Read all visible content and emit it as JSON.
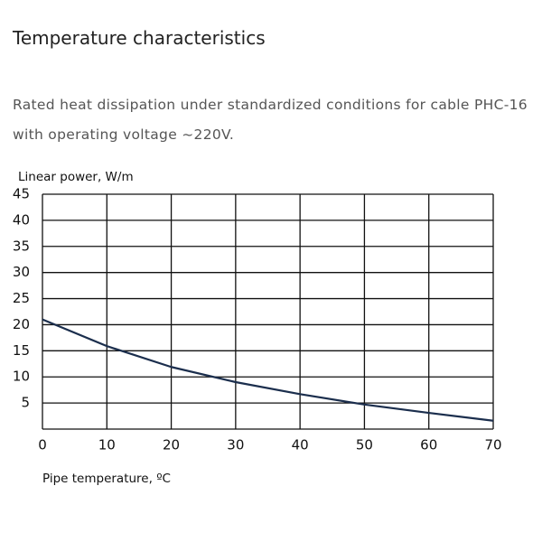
{
  "chart_data": {
    "type": "line",
    "title": "Temperature characteristics",
    "subtitle": "Rated heat dissipation under standardized conditions for cable PHC-16 with operating voltage ~220V.",
    "y_label": "Linear power, W/m",
    "x_label": "Pipe temperature, ºC",
    "x": [
      0,
      10,
      20,
      30,
      40,
      50,
      60,
      70
    ],
    "values": [
      21,
      15.9,
      11.9,
      9.0,
      6.7,
      4.7,
      3.1,
      1.6
    ],
    "color": "#1b2e4d",
    "xlim": [
      0,
      70
    ],
    "xticks": [
      0,
      10,
      20,
      30,
      40,
      50,
      60,
      70
    ],
    "ylim": [
      0,
      45
    ],
    "yticks": [
      5,
      10,
      15,
      20,
      25,
      30,
      35,
      40,
      45
    ],
    "grid": true
  }
}
